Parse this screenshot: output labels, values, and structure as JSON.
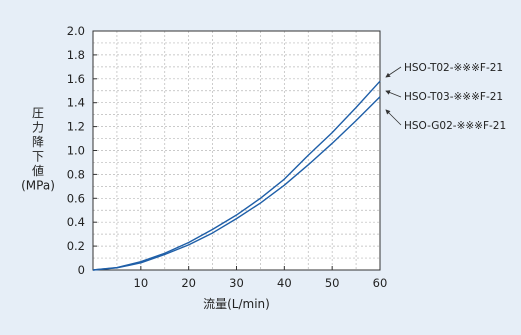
{
  "colors": {
    "background": "#e6eef7",
    "plot_background": "#ffffff",
    "series_line": "#1f5fa8",
    "grid": "#b8b8b8",
    "axis": "#333333",
    "text": "#222222"
  },
  "chart_data": {
    "type": "line",
    "title": "",
    "xlabel": "流量(L/min)",
    "ylabel_lines": [
      "圧",
      "力",
      "降",
      "下",
      "値",
      "(MPa)"
    ],
    "xlim": [
      0,
      60
    ],
    "ylim": [
      0,
      2.0
    ],
    "x_ticks": [
      10,
      20,
      30,
      40,
      50,
      60
    ],
    "x_tick_labels": [
      "10",
      "20",
      "30",
      "40",
      "50",
      "60"
    ],
    "y_ticks": [
      0,
      0.2,
      0.4,
      0.6,
      0.8,
      1.0,
      1.2,
      1.4,
      1.6,
      1.8,
      2.0
    ],
    "y_tick_labels": [
      "0",
      "0.2",
      "0.4",
      "0.6",
      "0.8",
      "1.0",
      "1.2",
      "1.4",
      "1.6",
      "1.8",
      "2.0"
    ],
    "grid": true,
    "legend_placement": "right, labels with leader arrows",
    "legend_labels": [
      "HSO-T02-※※※F-21",
      "HSO-T03-※※※F-21",
      "HSO-G02-※※※F-21"
    ],
    "series": [
      {
        "x": [
          0,
          5,
          10,
          15,
          20,
          25,
          30,
          35,
          40,
          45,
          50,
          55,
          60
        ],
        "values": [
          0,
          0.02,
          0.07,
          0.14,
          0.23,
          0.34,
          0.46,
          0.6,
          0.76,
          0.96,
          1.15,
          1.36,
          1.58
        ]
      },
      {
        "x": [
          0,
          5,
          10,
          15,
          20,
          25,
          30,
          35,
          40,
          45,
          50,
          55,
          60
        ],
        "values": [
          0,
          0.018,
          0.06,
          0.13,
          0.21,
          0.31,
          0.43,
          0.56,
          0.71,
          0.88,
          1.06,
          1.25,
          1.45
        ]
      }
    ]
  }
}
